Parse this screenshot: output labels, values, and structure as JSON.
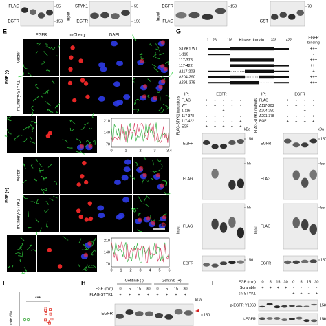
{
  "top": {
    "groups": [
      {
        "labels": [
          "FLAG",
          "EGFR"
        ],
        "markers": [
          "55",
          "150"
        ]
      },
      {
        "side": "Input",
        "labels": [
          "STYK1",
          "EGFR"
        ],
        "markers": [
          "55",
          "150"
        ]
      },
      {
        "side": "Input",
        "labels": [
          "EGFR",
          "FLAG"
        ],
        "markers": [
          "150"
        ]
      },
      {
        "labels": [
          "GST"
        ],
        "markers": [
          "70"
        ]
      }
    ]
  },
  "panel_e": {
    "letter": "E",
    "columns": [
      "EGFR",
      "mCherry",
      "DAPI"
    ],
    "conditions": [
      "EGF (-)",
      "EGF (+)"
    ],
    "rows": [
      "Vector",
      "mCherry-STYK1",
      "Vector",
      "mCherry-STYK1"
    ],
    "plots": [
      {
        "yticks": [
          "210",
          "140",
          "70"
        ],
        "xticks": [
          "0",
          "1",
          "2",
          "3",
          "3.4"
        ]
      },
      {
        "yticks": [
          "210",
          "140",
          "70"
        ],
        "xticks": [
          "0",
          "1",
          "2",
          "3",
          "4",
          "5",
          "6"
        ]
      }
    ],
    "scale_bar": "10 μm"
  },
  "panel_g": {
    "letter": "G",
    "positions": [
      "1",
      "26",
      "116",
      "378",
      "422"
    ],
    "domain": "Kinase domain",
    "binding_header": [
      "EGFR",
      "binding"
    ],
    "constructs": [
      {
        "name": "STYK1 WT",
        "binding": "+++"
      },
      {
        "name": "1-116",
        "binding": "-"
      },
      {
        "name": "117-378",
        "binding": "+++"
      },
      {
        "name": "117-422",
        "binding": "+++"
      },
      {
        "name": "Δ117-203",
        "binding": "+"
      },
      {
        "name": "Δ204-290",
        "binding": "+++"
      },
      {
        "name": "Δ291-378",
        "binding": "+++"
      }
    ],
    "ip": [
      {
        "ip": "IP:",
        "antibody": "EGFR",
        "side": "FLAG-STYK1 truncations",
        "unit": "kDa",
        "rows": [
          {
            "name": "FLAG",
            "signs": [
              "+",
              "-",
              "-",
              "-",
              "-"
            ]
          },
          {
            "name": "WT",
            "signs": [
              "-",
              "+",
              "-",
              "-",
              "-"
            ]
          },
          {
            "name": "1-116",
            "signs": [
              "-",
              "-",
              "+",
              "-",
              "-"
            ]
          },
          {
            "name": "117-378",
            "signs": [
              "-",
              "-",
              "-",
              "+",
              "-"
            ]
          },
          {
            "name": "117-422",
            "signs": [
              "-",
              "-",
              "-",
              "-",
              "+"
            ]
          },
          {
            "name": "EGF",
            "signs": [
              "+",
              "+",
              "+",
              "+",
              "+"
            ]
          }
        ],
        "blots": [
          {
            "label": "EGFR",
            "marker": "150"
          },
          {
            "label": "FLAG",
            "marker": "55"
          }
        ],
        "input": "Input",
        "input_blots": [
          {
            "label": "FLAG",
            "marker": "55"
          },
          {
            "label": "EGFR",
            "marker": "150"
          }
        ]
      },
      {
        "ip": "IP:",
        "antibody": "EGFR",
        "side": "FLAG-STYK1 mutants",
        "unit": "kDa",
        "rows": [
          {
            "name": "FLAG",
            "signs": [
              "+",
              "-",
              "-",
              "-"
            ]
          },
          {
            "name": "Δ117-203",
            "signs": [
              "-",
              "+",
              "-",
              "-"
            ]
          },
          {
            "name": "Δ204-290",
            "signs": [
              "-",
              "-",
              "+",
              "-"
            ]
          },
          {
            "name": "Δ291-378",
            "signs": [
              "-",
              "-",
              "-",
              "+"
            ]
          },
          {
            "name": "EGF",
            "signs": [
              "+",
              "+",
              "+",
              "+"
            ]
          }
        ],
        "blots": [
          {
            "label": "EGFR",
            "marker": "150"
          },
          {
            "label": "FLAG",
            "marker": "55"
          }
        ],
        "input": "Input",
        "input_blots": [
          {
            "label": "FLAG",
            "marker": "55"
          },
          {
            "label": "EGFR",
            "marker": "150"
          }
        ]
      }
    ]
  },
  "panel_f": {
    "letter": "F",
    "significance": "***",
    "ylabel": "rate (%)"
  },
  "panel_h": {
    "letter": "H",
    "groups": [
      "Gefitinib (-)",
      "Gefitinib (+)"
    ],
    "unit": "kDa",
    "rows": [
      {
        "name": "EGF (min)",
        "values": [
          "0",
          "5",
          "15",
          "30",
          "0",
          "5",
          "15",
          "30"
        ]
      },
      {
        "name": "FLAG-STYK1",
        "values": [
          "+",
          "+",
          "+",
          "+",
          "+",
          "+",
          "+",
          "+"
        ]
      }
    ],
    "blot": {
      "label": "EGFR",
      "marker": "150"
    }
  },
  "panel_i": {
    "letter": "I",
    "rows": [
      {
        "name": "EGF (min)",
        "values": [
          "0",
          "5",
          "15",
          "30",
          "0",
          "5",
          "15",
          "30"
        ]
      },
      {
        "name": "Scramble",
        "values": [
          "+",
          "+",
          "+",
          "+",
          "-",
          "-",
          "-",
          "-"
        ]
      },
      {
        "name": "sh-STYK1",
        "values": [
          "-",
          "-",
          "-",
          "-",
          "+",
          "+",
          "+",
          "+"
        ]
      }
    ],
    "blots": [
      {
        "label": "p-EGFR Y1068",
        "marker": "150"
      },
      {
        "label": "t-EGFR",
        "marker": "150"
      }
    ]
  }
}
